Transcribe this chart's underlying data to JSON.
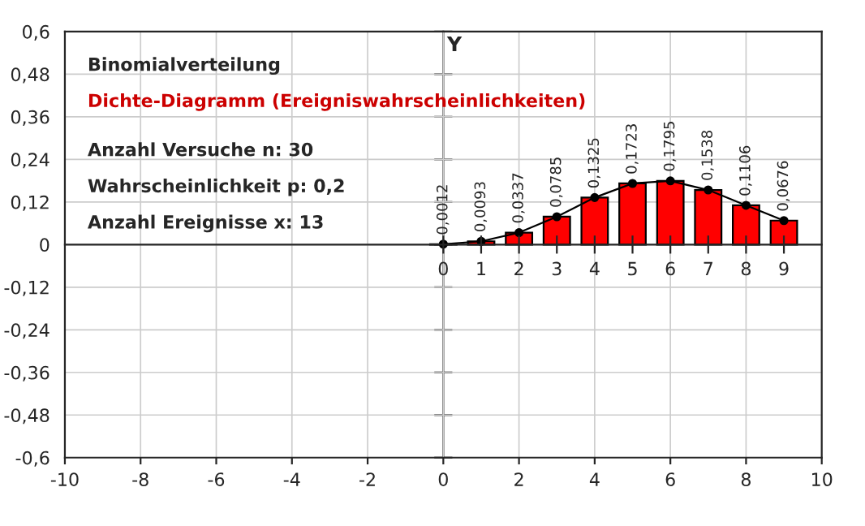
{
  "chart_data": {
    "type": "bar",
    "title": "Binomialverteilung",
    "subtitle": "Dichte-Diagramm (Ereigniswahrscheinlichkeiten)",
    "annotations": [
      "Anzahl Versuche n: 30",
      "Wahrscheinlichkeit p: 0,2",
      "Anzahl Ereignisse x: 13"
    ],
    "ylabel": "Y",
    "x": [
      0,
      1,
      2,
      3,
      4,
      5,
      6,
      7,
      8,
      9
    ],
    "series": [
      {
        "color": "#ff0000",
        "values": [
          0.0012,
          0.0093,
          0.0337,
          0.0785,
          0.1325,
          0.1723,
          0.1795,
          0.1538,
          0.1106,
          0.0676
        ],
        "value_labels": [
          "0,0012",
          "0,0093",
          "0,0337",
          "0,0785",
          "0,1325",
          "0,1723",
          "0,1795",
          "0,1538",
          "0,1106",
          "0,0676"
        ]
      },
      {
        "type": "line",
        "color": "#000000",
        "values": [
          0.0012,
          0.0093,
          0.0337,
          0.0785,
          0.1325,
          0.1723,
          0.1795,
          0.1538,
          0.1106,
          0.0676
        ]
      }
    ],
    "marker": "circle",
    "xlim": [
      -10,
      10
    ],
    "xticks": [
      -10,
      -8,
      -6,
      -4,
      -2,
      0,
      2,
      4,
      6,
      8,
      10
    ],
    "x2lim": [
      -10,
      10
    ],
    "x2ticks": [
      0,
      1,
      2,
      3,
      4,
      5,
      6,
      7,
      8,
      9
    ],
    "ylim": [
      -0.6,
      0.6
    ],
    "yticks": [
      {
        "value": -0.6,
        "label": "-0,6"
      },
      {
        "value": -0.48,
        "label": "-0,48"
      },
      {
        "value": -0.36,
        "label": "-0,36"
      },
      {
        "value": -0.24,
        "label": "-0,24"
      },
      {
        "value": -0.12,
        "label": "-0,12"
      },
      {
        "value": 0,
        "label": "0"
      },
      {
        "value": 0.12,
        "label": "0,12"
      },
      {
        "value": 0.24,
        "label": "0,24"
      },
      {
        "value": 0.36,
        "label": "0,36"
      },
      {
        "value": 0.48,
        "label": "0,48"
      },
      {
        "value": 0.6,
        "label": "0,6"
      }
    ],
    "grid": true
  }
}
